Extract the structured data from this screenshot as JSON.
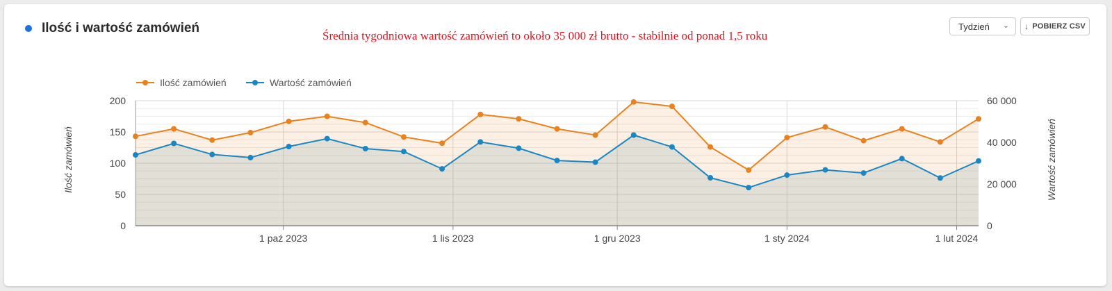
{
  "header": {
    "title": "Ilość i wartość zamówień",
    "annotation": "Średnia tygodniowa wartość zamówień to około  35 000 zł brutto - stabilnie od ponad 1,5 roku",
    "period_select_value": "Tydzień",
    "csv_button_label": "POBIERZ CSV"
  },
  "colors": {
    "orders_count": "#e8821e",
    "orders_value": "#1a87c4",
    "title_dot": "#1a73d9",
    "annotation": "#e8101a"
  },
  "chart_data": {
    "type": "line",
    "x": [
      "2023-09-04",
      "2023-09-11",
      "2023-09-18",
      "2023-09-25",
      "2023-10-02",
      "2023-10-09",
      "2023-10-16",
      "2023-10-23",
      "2023-10-30",
      "2023-11-06",
      "2023-11-13",
      "2023-11-20",
      "2023-11-27",
      "2023-12-04",
      "2023-12-11",
      "2023-12-18",
      "2023-12-25",
      "2024-01-01",
      "2024-01-08",
      "2024-01-15",
      "2024-01-22",
      "2024-01-29",
      "2024-02-05"
    ],
    "x_tick_labels": [
      "1 paź 2023",
      "1 lis 2023",
      "1 gru 2023",
      "1 sty 2024",
      "1 lut 2024"
    ],
    "x_tick_dates": [
      "2023-10-01",
      "2023-11-01",
      "2023-12-01",
      "2024-01-01",
      "2024-02-01"
    ],
    "series": [
      {
        "name": "Ilość zamówień",
        "axis": "left",
        "values": [
          143,
          155,
          137,
          149,
          167,
          175,
          165,
          142,
          132,
          178,
          171,
          155,
          145,
          198,
          191,
          126,
          89,
          141,
          158,
          136,
          155,
          134,
          171
        ]
      },
      {
        "name": "Wartość zamówień",
        "axis": "right",
        "values": [
          34000,
          39500,
          34200,
          32700,
          38000,
          41800,
          37000,
          35600,
          27300,
          40200,
          37200,
          31300,
          30500,
          43500,
          37800,
          23000,
          18300,
          24300,
          26800,
          25300,
          32200,
          22900,
          31100
        ]
      }
    ],
    "y_left": {
      "label": "Ilość zamówień",
      "ylim": [
        0,
        200
      ],
      "ticks": [
        "0",
        "50",
        "100",
        "150",
        "200"
      ]
    },
    "y_right": {
      "label": "Wartość zamówień",
      "ylim": [
        0,
        60000
      ],
      "ticks": [
        "0",
        "20 000",
        "40 000",
        "60 000"
      ]
    },
    "grid": true,
    "legend_position": "top-left"
  }
}
